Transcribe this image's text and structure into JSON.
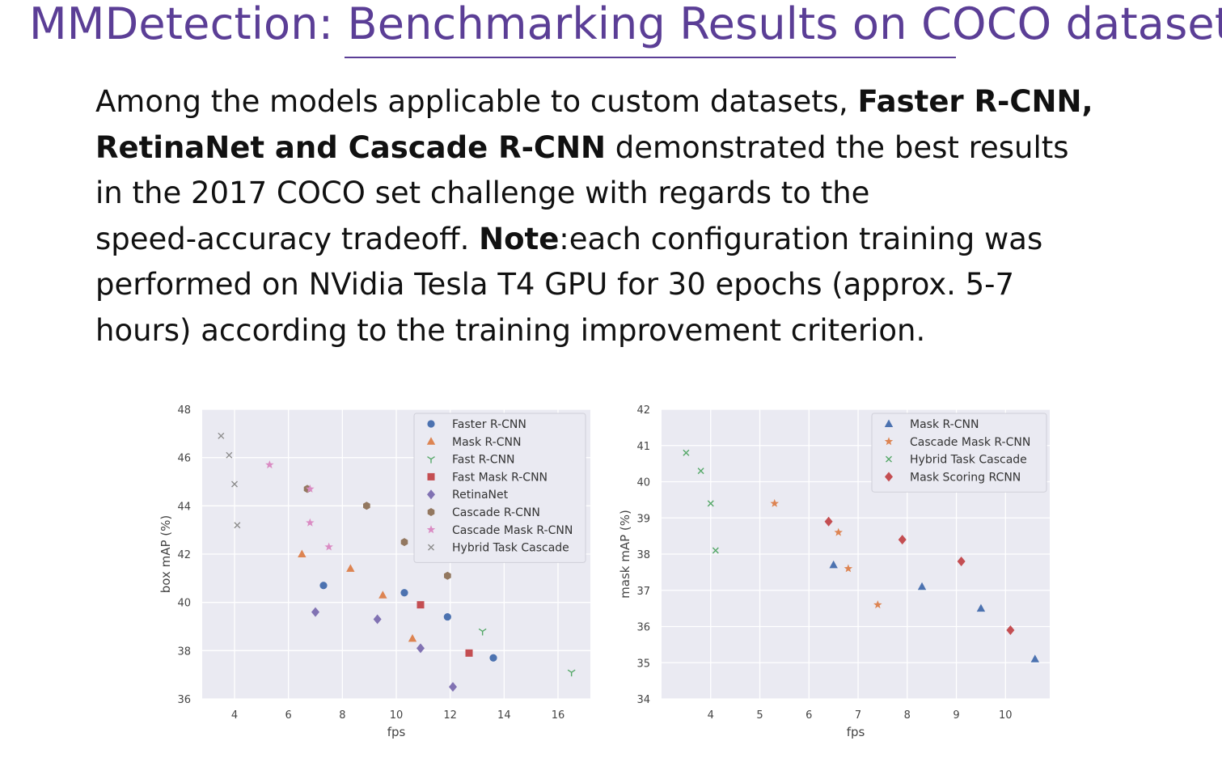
{
  "slide": {
    "title": "MMDetection: Benchmarking Results on COCO dataset",
    "paragraph": [
      [
        {
          "t": "Among the models applicable to custom datasets, ",
          "b": false
        },
        {
          "t": "Faster R-CNN,",
          "b": true
        }
      ],
      [
        {
          "t": "RetinaNet and Cascade R-CNN",
          "b": true
        },
        {
          "t": " demonstrated the best results",
          "b": false
        }
      ],
      [
        {
          "t": "in the 2017 COCO set challenge with regards to the",
          "b": false
        }
      ],
      [
        {
          "t": "speed-accuracy tradeoff. ",
          "b": false
        },
        {
          "t": "Note",
          "b": true
        },
        {
          "t": ":each configuration training was",
          "b": false
        }
      ],
      [
        {
          "t": "performed on NVidia Tesla T4 GPU for  30 epochs (approx. 5-7",
          "b": false
        }
      ],
      [
        {
          "t": "hours) according to the training improvement criterion.",
          "b": false
        }
      ]
    ]
  },
  "chart_data": [
    {
      "type": "scatter",
      "title": "",
      "xlabel": "fps",
      "ylabel": "box mAP (%)",
      "xlim": [
        2.8,
        17.2
      ],
      "ylim": [
        36,
        48
      ],
      "xticks": [
        4,
        6,
        8,
        10,
        12,
        14,
        16
      ],
      "yticks": [
        36,
        38,
        40,
        42,
        44,
        46,
        48
      ],
      "grid": true,
      "legend_position": "top-right",
      "series": [
        {
          "name": "Faster R-CNN",
          "marker": "circle",
          "color": "#4c72b0",
          "points": [
            [
              7.3,
              40.7
            ],
            [
              10.3,
              40.4
            ],
            [
              11.9,
              39.4
            ],
            [
              13.6,
              37.7
            ]
          ]
        },
        {
          "name": "Mask R-CNN",
          "marker": "triangle",
          "color": "#dd8452",
          "points": [
            [
              6.5,
              42.0
            ],
            [
              8.3,
              41.4
            ],
            [
              9.5,
              40.3
            ],
            [
              10.6,
              38.5
            ]
          ]
        },
        {
          "name": "Fast R-CNN",
          "marker": "tri-down",
          "color": "#55a868",
          "points": [
            [
              13.2,
              38.8
            ],
            [
              16.5,
              37.1
            ]
          ]
        },
        {
          "name": "Fast Mask R-CNN",
          "marker": "square",
          "color": "#c44e52",
          "points": [
            [
              10.9,
              39.9
            ],
            [
              12.7,
              37.9
            ]
          ]
        },
        {
          "name": "RetinaNet",
          "marker": "diamond",
          "color": "#8172b3",
          "points": [
            [
              7.0,
              39.6
            ],
            [
              9.3,
              39.3
            ],
            [
              10.9,
              38.1
            ],
            [
              12.1,
              36.5
            ]
          ]
        },
        {
          "name": "Cascade R-CNN",
          "marker": "hexagon",
          "color": "#937860",
          "points": [
            [
              6.7,
              44.7
            ],
            [
              8.9,
              44.0
            ],
            [
              10.3,
              42.5
            ],
            [
              11.9,
              41.1
            ]
          ]
        },
        {
          "name": "Cascade Mask R-CNN",
          "marker": "star",
          "color": "#da8bc3",
          "points": [
            [
              5.3,
              45.7
            ],
            [
              6.8,
              44.7
            ],
            [
              6.8,
              43.3
            ],
            [
              7.5,
              42.3
            ]
          ]
        },
        {
          "name": "Hybrid Task Cascade",
          "marker": "x",
          "color": "#8c8c8c",
          "points": [
            [
              3.5,
              46.9
            ],
            [
              3.8,
              46.1
            ],
            [
              4.0,
              44.9
            ],
            [
              4.1,
              43.2
            ]
          ]
        }
      ]
    },
    {
      "type": "scatter",
      "title": "",
      "xlabel": "fps",
      "ylabel": "mask mAP (%)",
      "xlim": [
        3.0,
        10.9
      ],
      "ylim": [
        34,
        42
      ],
      "xticks": [
        4,
        5,
        6,
        7,
        8,
        9,
        10
      ],
      "yticks": [
        34,
        35,
        36,
        37,
        38,
        39,
        40,
        41,
        42
      ],
      "grid": true,
      "legend_position": "top-right",
      "series": [
        {
          "name": "Mask R-CNN",
          "marker": "triangle",
          "color": "#4c72b0",
          "points": [
            [
              6.5,
              37.7
            ],
            [
              8.3,
              37.1
            ],
            [
              9.5,
              36.5
            ],
            [
              10.6,
              35.1
            ]
          ]
        },
        {
          "name": "Cascade Mask R-CNN",
          "marker": "star",
          "color": "#dd8452",
          "points": [
            [
              5.3,
              39.4
            ],
            [
              6.6,
              38.6
            ],
            [
              6.8,
              37.6
            ],
            [
              7.4,
              36.6
            ]
          ]
        },
        {
          "name": "Hybrid Task Cascade",
          "marker": "x",
          "color": "#55a868",
          "points": [
            [
              3.5,
              40.8
            ],
            [
              3.8,
              40.3
            ],
            [
              4.0,
              39.4
            ],
            [
              4.1,
              38.1
            ]
          ]
        },
        {
          "name": "Mask Scoring RCNN",
          "marker": "diamond",
          "color": "#c44e52",
          "points": [
            [
              6.4,
              38.9
            ],
            [
              7.9,
              38.4
            ],
            [
              9.1,
              37.8
            ],
            [
              10.1,
              35.9
            ]
          ]
        }
      ]
    }
  ]
}
